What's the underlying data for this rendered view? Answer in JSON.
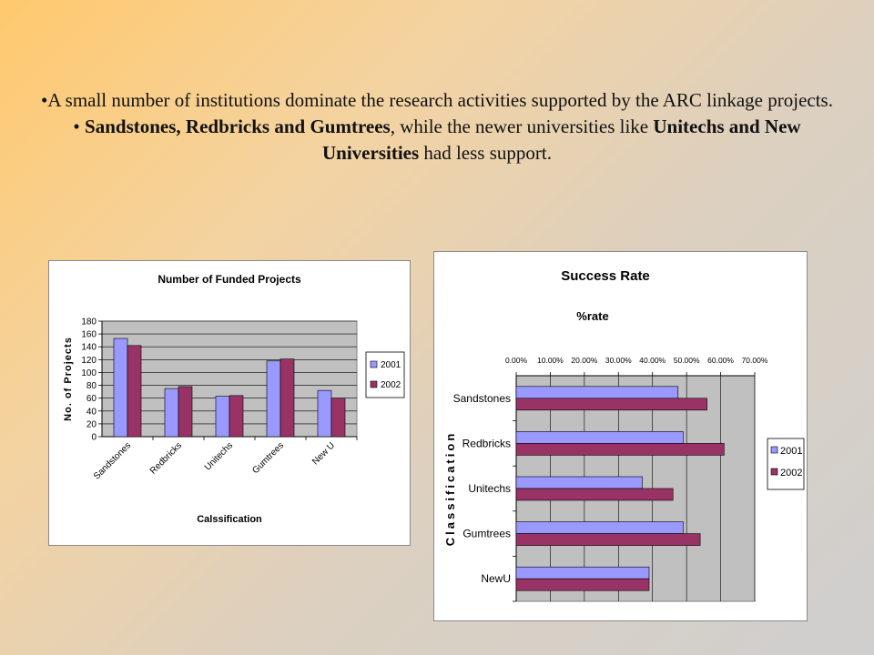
{
  "text": {
    "line1": "•A small number of institutions dominate the research activities supported by the ARC linkage projects.",
    "line2_bullet": "• ",
    "line2_bold": "Sandstones, Redbricks and Gumtrees",
    "line2_mid": ", while the newer universities like ",
    "line2_bold2": "Unitechs and New Universities",
    "line2_end": " had less support."
  },
  "chart_data": [
    {
      "type": "bar",
      "title": "Number of Funded Projects",
      "xlabel": "Calssification",
      "ylabel": "No. of Projects",
      "categories": [
        "Sandstones",
        "Redbricks",
        "Unitechs",
        "Gumtrees",
        "New U"
      ],
      "series": [
        {
          "name": "2001",
          "values": [
            153,
            75,
            63,
            118,
            72
          ],
          "color": "#9999ff"
        },
        {
          "name": "2002",
          "values": [
            142,
            78,
            64,
            121,
            60
          ],
          "color": "#993366"
        }
      ],
      "ylim": [
        0,
        180
      ],
      "yticks": [
        0,
        20,
        40,
        60,
        80,
        100,
        120,
        140,
        160,
        180
      ],
      "plot_bg": "#c0c0c0",
      "grid": true,
      "legend": "right"
    },
    {
      "type": "bar",
      "orientation": "horizontal",
      "title": "Success Rate",
      "subtitle": "%rate",
      "ylabel": "Classification",
      "categories": [
        "Sandstones",
        "Redbricks",
        "Unitechs",
        "Gumtrees",
        "NewU"
      ],
      "series": [
        {
          "name": "2001",
          "values": [
            47.5,
            49,
            37,
            49,
            39
          ],
          "color": "#9999ff"
        },
        {
          "name": "2002",
          "values": [
            56,
            61,
            46,
            54,
            39
          ],
          "color": "#993366"
        }
      ],
      "xlim": [
        0,
        70
      ],
      "xticks": [
        "0.00%",
        "10.00%",
        "20.00%",
        "30.00%",
        "40.00%",
        "50.00%",
        "60.00%",
        "70.00%"
      ],
      "plot_bg": "#c0c0c0",
      "grid": true,
      "legend": "right"
    }
  ]
}
